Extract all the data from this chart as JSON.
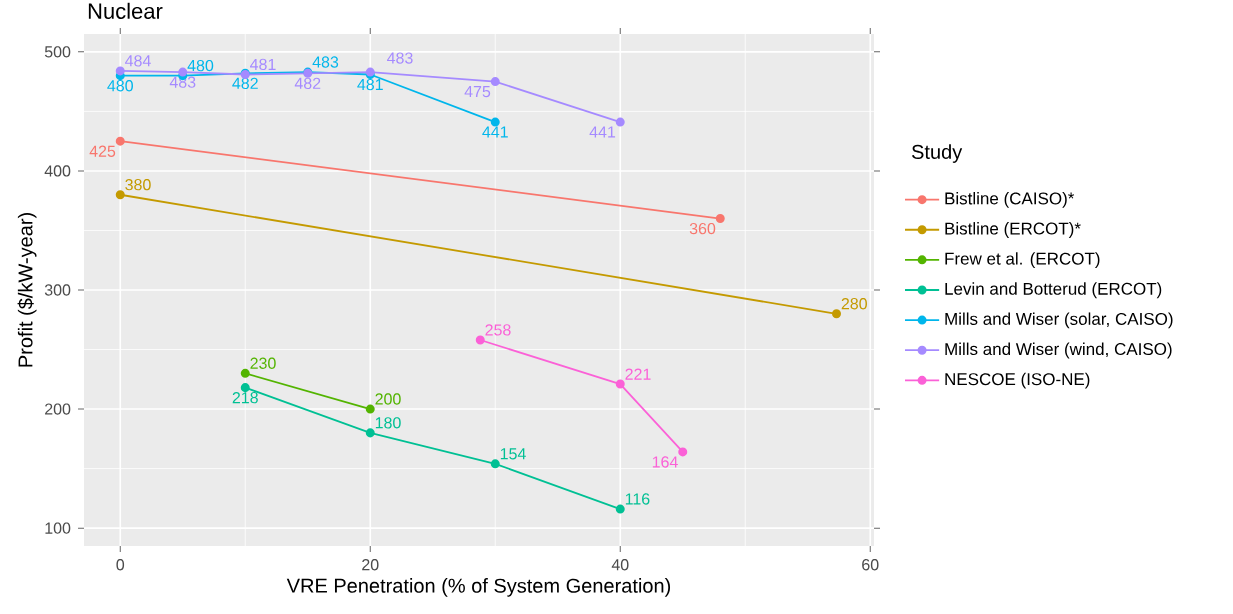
{
  "chart_data": {
    "type": "line",
    "title": "Nuclear",
    "xlabel": "VRE Penetration (% of System Generation)",
    "ylabel": "Profit ($/kW-year)",
    "legend_title": "Study",
    "series": [
      {
        "name": "Bistline (CAISO)*",
        "color": "#F8766D",
        "x": [
          0,
          48
        ],
        "values": [
          425,
          360
        ]
      },
      {
        "name": "Bistline (ERCOT)*",
        "color": "#C49A00",
        "x": [
          0,
          57.3
        ],
        "values": [
          380,
          280
        ]
      },
      {
        "name": "Frew et al. (ERCOT)",
        "color": "#53B400",
        "x": [
          10,
          20
        ],
        "values": [
          230,
          200
        ]
      },
      {
        "name": "Levin and Botterud (ERCOT)",
        "color": "#00C094",
        "x": [
          10,
          20,
          30,
          40
        ],
        "values": [
          218,
          180,
          154,
          116
        ]
      },
      {
        "name": "Mills and Wiser (solar, CAISO)",
        "color": "#00B6EB",
        "x": [
          0,
          5,
          10,
          15,
          20,
          30
        ],
        "values": [
          480,
          480,
          482,
          483,
          481,
          441
        ]
      },
      {
        "name": "Mills and Wiser (wind, CAISO)",
        "color": "#A58AFF",
        "x": [
          0,
          5,
          10,
          15,
          20,
          30,
          40
        ],
        "values": [
          484,
          483,
          481,
          482,
          483,
          475,
          441
        ]
      },
      {
        "name": "NESCOE (ISO-NE)",
        "color": "#FB61D7",
        "x": [
          28.8,
          40,
          45
        ],
        "values": [
          258,
          221,
          164
        ]
      }
    ],
    "xlim": [
      -2.9,
      60.3
    ],
    "xticks": [
      0,
      20,
      40,
      60
    ],
    "ylim": [
      85,
      515
    ],
    "yticks": [
      100,
      200,
      300,
      400,
      500
    ],
    "grid": true,
    "legend": "right",
    "marker": "circle",
    "line_style": "solid",
    "data_labels": true
  }
}
